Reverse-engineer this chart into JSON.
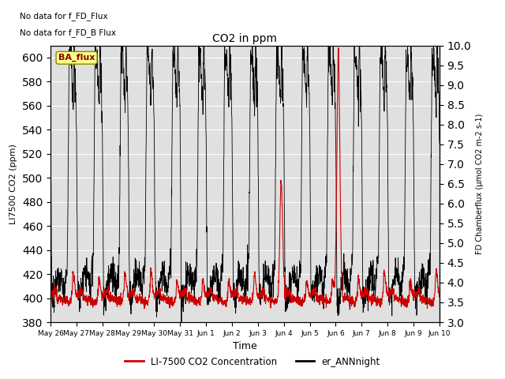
{
  "title": "CO2 in ppm",
  "xlabel": "Time",
  "ylabel_left": "LI7500 CO2 (ppm)",
  "ylabel_right": "FD Chamberflux (μmol CO2 m-2 s-1)",
  "ylim_left": [
    380,
    610
  ],
  "ylim_right": [
    3.0,
    10.0
  ],
  "yticks_left": [
    380,
    400,
    420,
    440,
    460,
    480,
    500,
    520,
    540,
    560,
    580,
    600
  ],
  "yticks_right": [
    3.0,
    3.5,
    4.0,
    4.5,
    5.0,
    5.5,
    6.0,
    6.5,
    7.0,
    7.5,
    8.0,
    8.5,
    9.0,
    9.5,
    10.0
  ],
  "no_data_text1": "No data for f_FD_Flux",
  "no_data_text2": "No data for f_FD_B Flux",
  "legend_label1": "LI-7500 CO2 Concentration",
  "legend_label2": "er_ANNnight",
  "ba_flux_label": "BA_flux",
  "background_color": "#ffffff",
  "plot_bg_color": "#e0e0e0",
  "line1_color": "#cc0000",
  "line2_color": "#000000",
  "n_days": 16,
  "xtick_labels": [
    "May 26",
    "May 27",
    "May 28",
    "May 29",
    "May 30",
    "May 31",
    "Jun 1",
    "Jun 2",
    "Jun 3",
    "Jun 4",
    "Jun 5",
    "Jun 6",
    "Jun 7",
    "Jun 8",
    "Jun 9",
    "Jun 10"
  ],
  "xtick_positions": [
    0,
    1,
    2,
    3,
    4,
    5,
    6,
    7,
    8,
    9,
    10,
    11,
    12,
    13,
    14,
    15
  ]
}
